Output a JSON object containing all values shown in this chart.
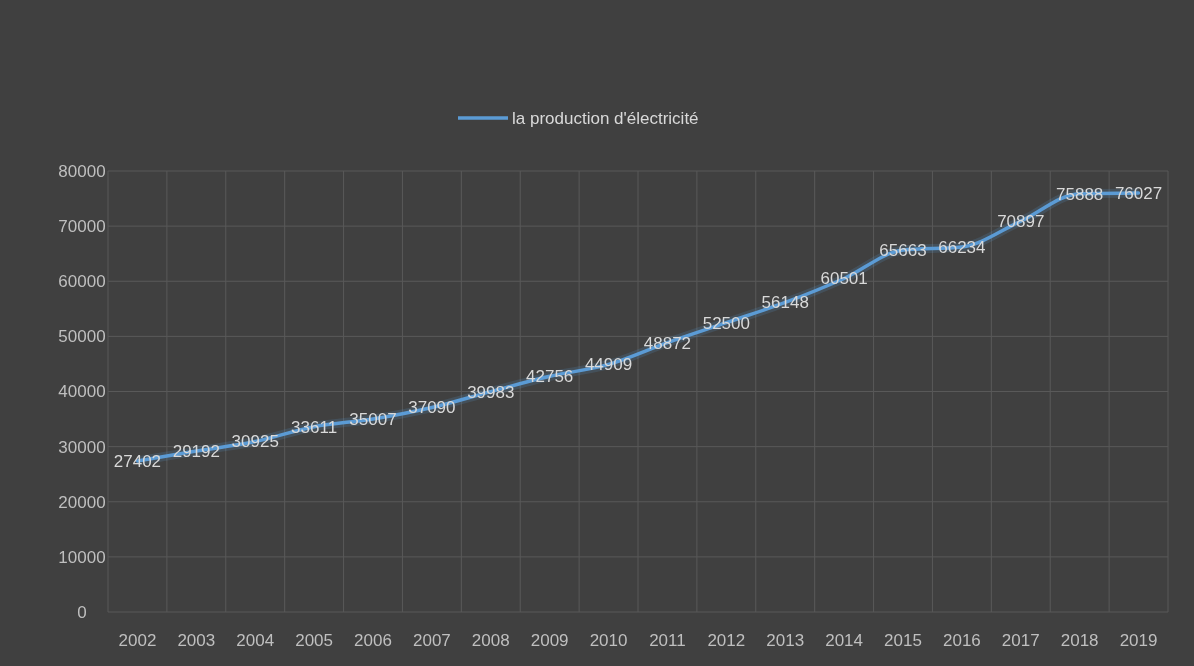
{
  "chart_data": {
    "type": "line",
    "categories": [
      "2002",
      "2003",
      "2004",
      "2005",
      "2006",
      "2007",
      "2008",
      "2009",
      "2010",
      "2011",
      "2012",
      "2013",
      "2014",
      "2015",
      "2016",
      "2017",
      "2018",
      "2019"
    ],
    "series": [
      {
        "name": "la production d'électricité",
        "color": "#5b9bd5",
        "values": [
          27402,
          29192,
          30925,
          33611,
          35007,
          37090,
          39983,
          42756,
          44909,
          48872,
          52500,
          56148,
          60501,
          65663,
          66234,
          70897,
          75888,
          76027
        ]
      }
    ],
    "ylim": [
      0,
      80000
    ],
    "yticks": [
      0,
      10000,
      20000,
      30000,
      40000,
      50000,
      60000,
      70000,
      80000
    ],
    "grid": true,
    "legend": "top",
    "data_labels": true,
    "marker": "none",
    "line_style": "solid"
  }
}
